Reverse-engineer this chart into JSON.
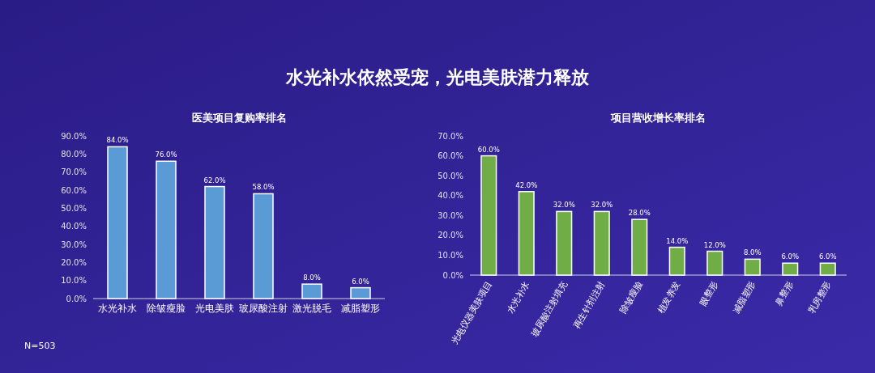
{
  "chart_data": [
    {
      "type": "other",
      "title": "水光补水依然受宠，光电美肤潜力释放",
      "annotations": [
        "N=503"
      ]
    },
    {
      "type": "bar",
      "title": "医美项目复购率排名",
      "categories": [
        "水光补水",
        "除皱瘦脸",
        "光电美肤",
        "玻尿酸注射",
        "激光脱毛",
        "减脂塑形"
      ],
      "values": [
        84,
        76,
        62,
        58,
        8,
        6
      ],
      "value_labels": [
        "84.0%",
        "76.0%",
        "62.0%",
        "58.0%",
        "8.0%",
        "6.0%"
      ],
      "color": "#5b9bd5",
      "ylim": [
        0,
        90
      ],
      "yticks": [
        {
          "value": 0,
          "label": "0.0%"
        },
        {
          "value": 10,
          "label": "10.0%"
        },
        {
          "value": 20,
          "label": "20.0%"
        },
        {
          "value": 30,
          "label": "30.0%"
        },
        {
          "value": 40,
          "label": "40.0%"
        },
        {
          "value": 50,
          "label": "50.0%"
        },
        {
          "value": 60,
          "label": "60.0%"
        },
        {
          "value": 70,
          "label": "70.0%"
        },
        {
          "value": 80,
          "label": "80.0%"
        },
        {
          "value": 90,
          "label": "90.0%"
        }
      ],
      "grid": false
    },
    {
      "type": "bar",
      "title": "项目营收增长率排名",
      "categories": [
        "光电仪器美肤项目",
        "水光补水",
        "玻尿酸注射填充",
        "再生针剂注射",
        "除皱瘦脸",
        "植发养发",
        "眼整形",
        "减脂塑形",
        "鼻整形",
        "乳房整形"
      ],
      "values": [
        60,
        42,
        32,
        32,
        28,
        14,
        12,
        8,
        6,
        6
      ],
      "value_labels": [
        "60.0%",
        "42.0%",
        "32.0%",
        "32.0%",
        "28.0%",
        "14.0%",
        "12.0%",
        "8.0%",
        "6.0%",
        "6.0%"
      ],
      "color": "#70ad47",
      "ylim": [
        0,
        70
      ],
      "yticks": [
        {
          "value": 0,
          "label": "0.0%"
        },
        {
          "value": 10,
          "label": "10.0%"
        },
        {
          "value": 20,
          "label": "20.0%"
        },
        {
          "value": 30,
          "label": "30.0%"
        },
        {
          "value": 40,
          "label": "40.0%"
        },
        {
          "value": 50,
          "label": "50.0%"
        },
        {
          "value": 60,
          "label": "60.0%"
        },
        {
          "value": 70,
          "label": "70.0%"
        }
      ],
      "grid": false
    }
  ]
}
